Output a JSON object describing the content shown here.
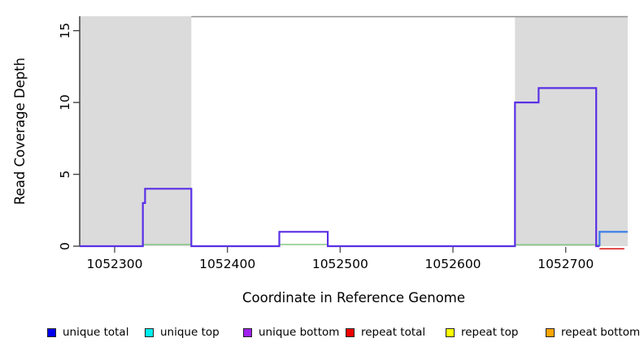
{
  "chart_data": {
    "type": "line",
    "subtype": "step-coverage-plot",
    "title": "",
    "xlabel": "Coordinate in Reference Genome",
    "ylabel": "Read Coverage Depth",
    "xlim": [
      1052269,
      1052755
    ],
    "ylim": [
      0,
      16
    ],
    "x_ticks": [
      1052300,
      1052400,
      1052500,
      1052600,
      1052700
    ],
    "y_ticks": [
      0,
      5,
      10,
      15
    ],
    "grid": false,
    "legend_position": "bottom",
    "shaded_regions": [
      {
        "name": "repeat-region-left",
        "x0": 1052269,
        "x1": 1052368,
        "color": "#dbdbdb"
      },
      {
        "name": "repeat-region-right",
        "x0": 1052655,
        "x1": 1052755,
        "color": "#dbdbdb"
      }
    ],
    "series": [
      {
        "name": "baseline-green",
        "color": "#7cc47c",
        "width": 1.4,
        "segments": [
          [
            [
              1052325,
              0.12
            ],
            [
              1052368,
              0.12
            ]
          ],
          [
            [
              1052446,
              0.12
            ],
            [
              1052489,
              0.12
            ]
          ],
          [
            [
              1052655,
              0.1
            ],
            [
              1052730,
              0.1
            ]
          ]
        ]
      },
      {
        "name": "repeat total",
        "color": "#dd2222",
        "width": 1.6,
        "segments": [
          [
            [
              1052730,
              -0.18
            ],
            [
              1052752,
              -0.18
            ]
          ]
        ]
      },
      {
        "name": "unique top",
        "color": "#4485e6",
        "width": 2.4,
        "segments": [
          [
            [
              1052730,
              0
            ],
            [
              1052730,
              1
            ],
            [
              1052755,
              1
            ]
          ]
        ]
      },
      {
        "name": "unique bottom",
        "color": "#5a2fe6",
        "width": 2.2,
        "segments": [
          [
            [
              1052269,
              0
            ],
            [
              1052325,
              0
            ],
            [
              1052325,
              3
            ],
            [
              1052327,
              3
            ],
            [
              1052327,
              4
            ],
            [
              1052368,
              4
            ],
            [
              1052368,
              0
            ],
            [
              1052446,
              0
            ],
            [
              1052446,
              1
            ],
            [
              1052489,
              1
            ],
            [
              1052489,
              0
            ],
            [
              1052655,
              0
            ],
            [
              1052655,
              10
            ],
            [
              1052676,
              10
            ],
            [
              1052676,
              11
            ],
            [
              1052727,
              11
            ],
            [
              1052727,
              0
            ],
            [
              1052730,
              0
            ]
          ]
        ]
      }
    ]
  },
  "axes_text": {
    "xlabel": "Coordinate in Reference Genome",
    "ylabel": "Read Coverage Depth"
  },
  "legend": {
    "items": [
      {
        "label": "unique total",
        "color": "#0000ee"
      },
      {
        "label": "unique top",
        "color": "#00eeee"
      },
      {
        "label": "unique bottom",
        "color": "#a020f0"
      },
      {
        "label": "repeat total",
        "color": "#ee0000"
      },
      {
        "label": "repeat top",
        "color": "#ffff00"
      },
      {
        "label": "repeat bottom",
        "color": "#ffa500"
      }
    ]
  }
}
